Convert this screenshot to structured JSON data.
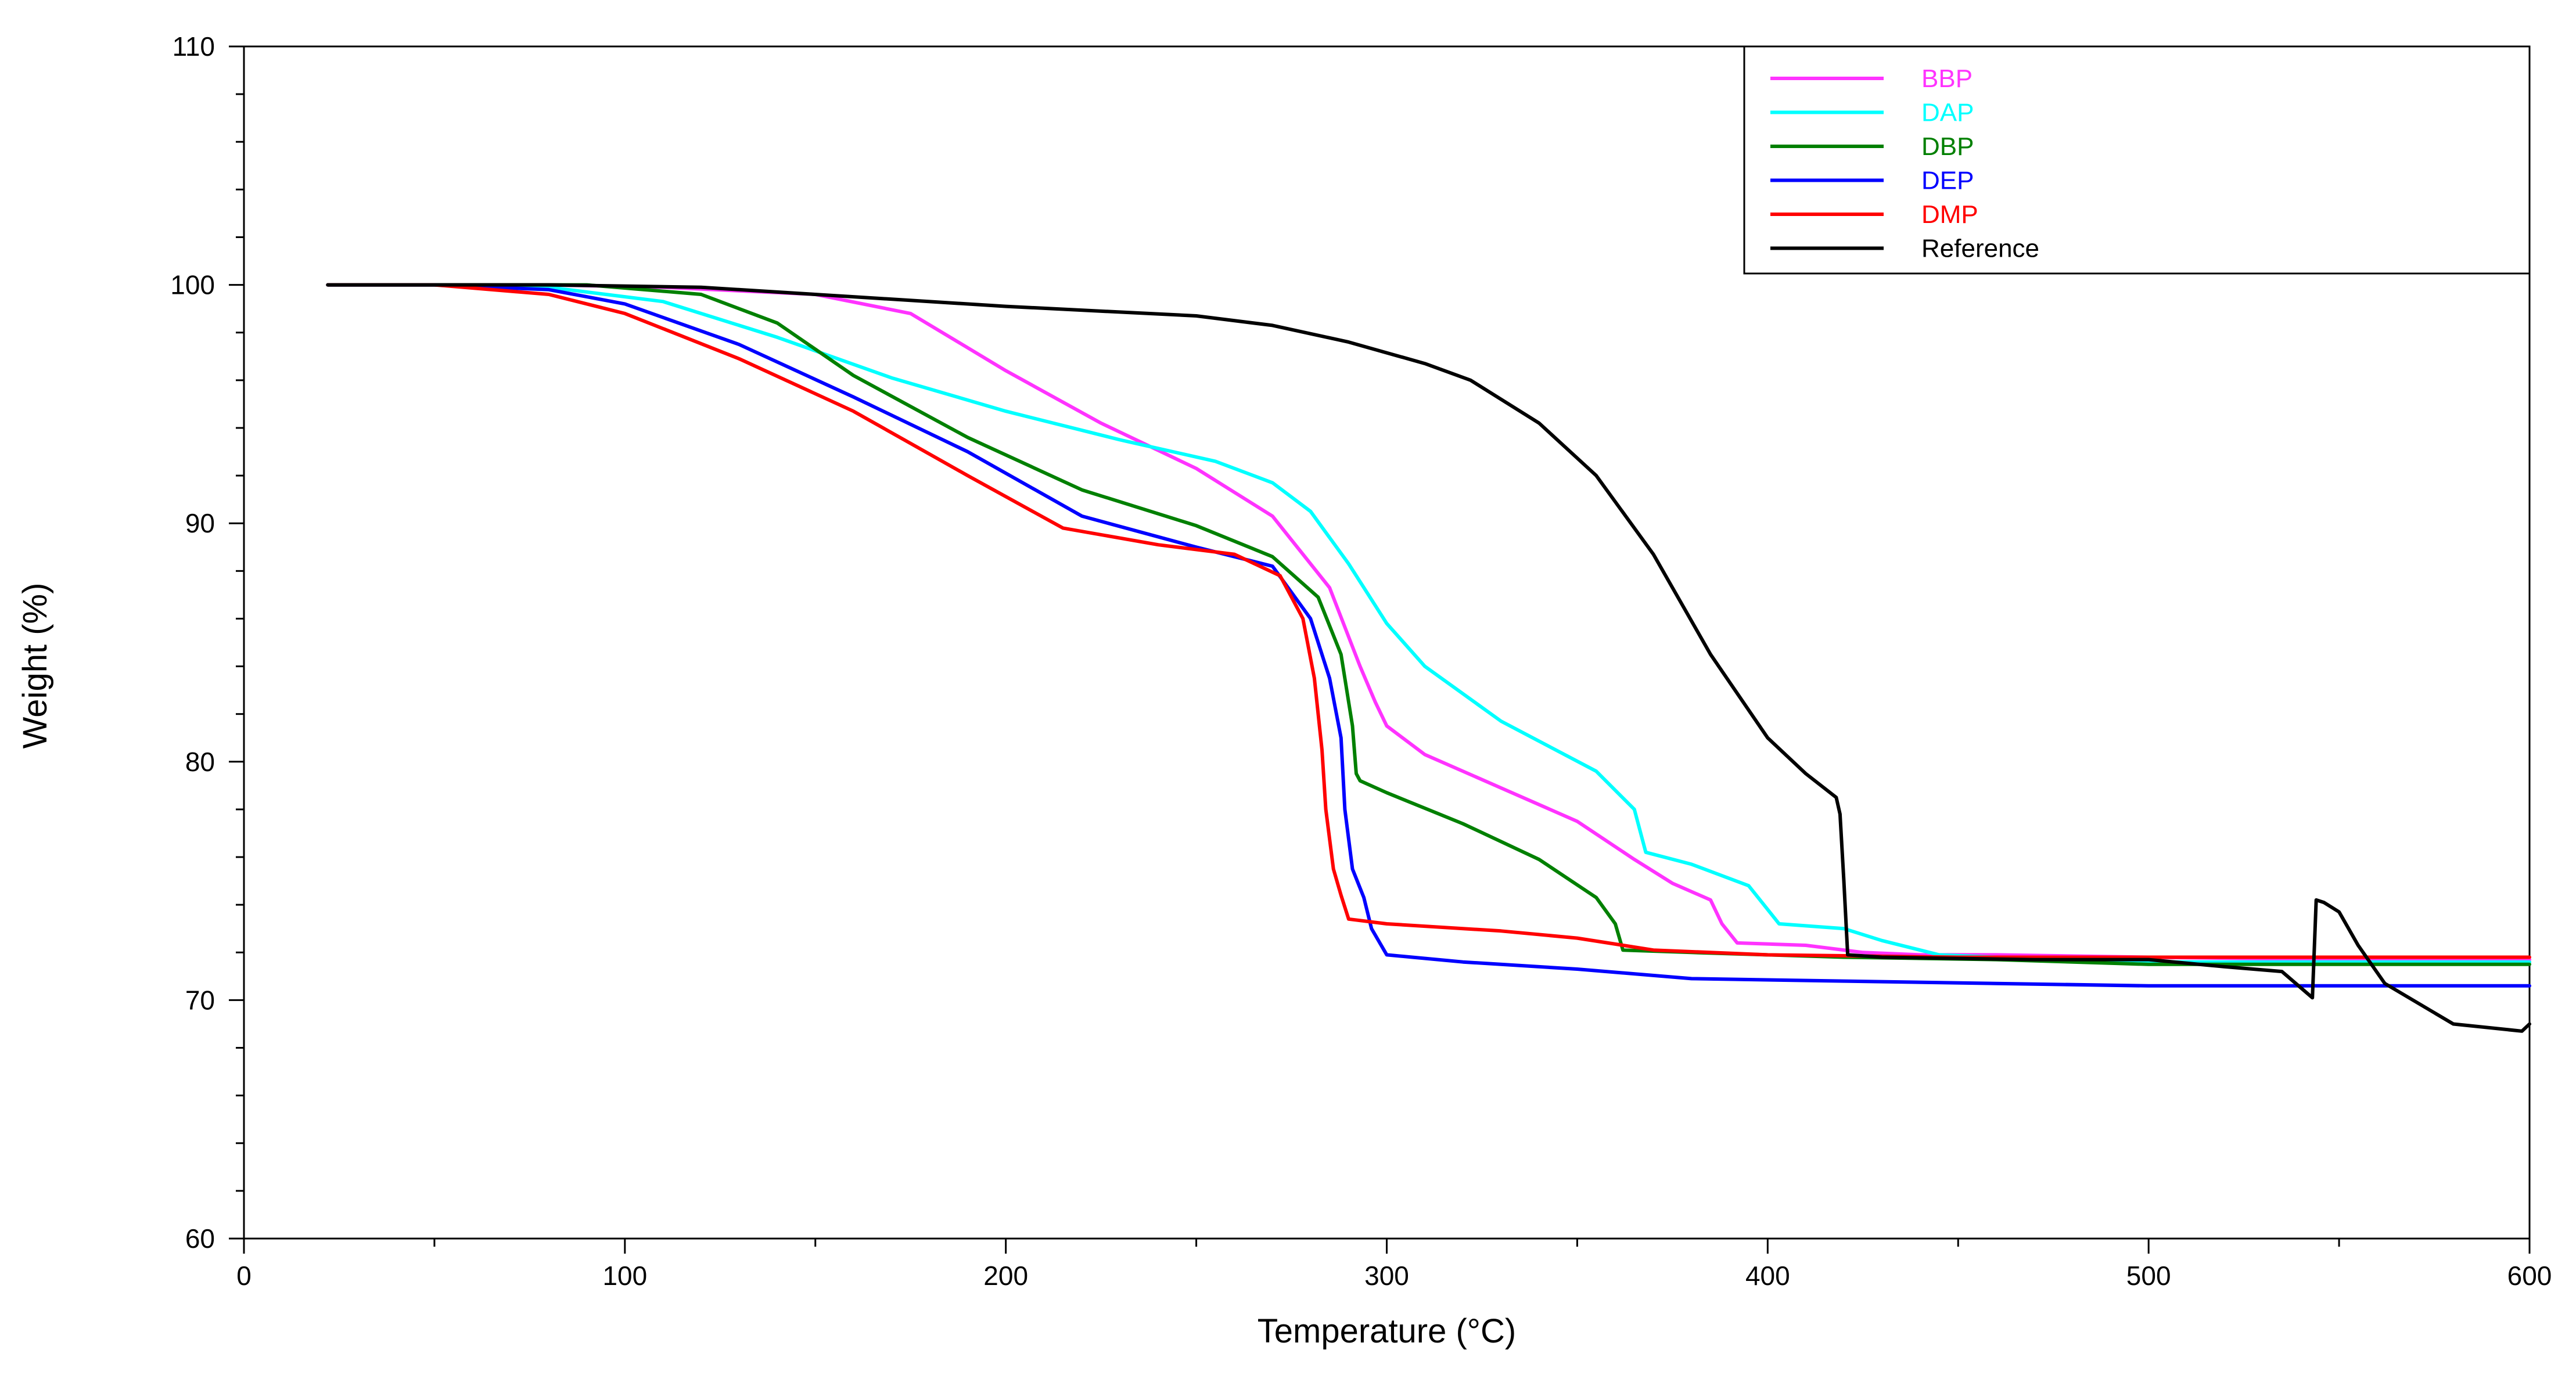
{
  "chart_data": {
    "type": "line",
    "title": "",
    "xlabel": "Temperature (°C)",
    "ylabel": "Weight (%)",
    "xlim": [
      0,
      600
    ],
    "ylim": [
      60,
      110
    ],
    "x_ticks": [
      0,
      100,
      200,
      300,
      400,
      500,
      600
    ],
    "y_ticks": [
      60,
      70,
      80,
      90,
      100,
      110
    ],
    "grid": false,
    "legend_position": "top-right",
    "series": [
      {
        "name": "BBP",
        "color": "#ff33ff",
        "x": [
          22,
          50,
          80,
          110,
          150,
          175,
          200,
          225,
          250,
          270,
          285,
          293,
          297,
          300,
          310,
          330,
          350,
          365,
          375,
          385,
          388,
          392,
          410,
          425,
          440,
          460,
          500,
          550,
          600
        ],
        "y": [
          100,
          100,
          100,
          99.9,
          99.6,
          98.8,
          96.4,
          94.2,
          92.3,
          90.3,
          87.3,
          84.0,
          82.5,
          81.5,
          80.3,
          78.9,
          77.5,
          75.9,
          74.9,
          74.2,
          73.2,
          72.4,
          72.3,
          72.0,
          71.9,
          71.9,
          71.8,
          71.7,
          71.7
        ]
      },
      {
        "name": "DAP",
        "color": "#00ffff",
        "x": [
          22,
          50,
          80,
          110,
          140,
          170,
          200,
          230,
          255,
          270,
          280,
          290,
          300,
          310,
          330,
          355,
          365,
          368,
          380,
          395,
          403,
          420,
          430,
          445,
          460,
          500,
          550,
          600
        ],
        "y": [
          100,
          100,
          99.9,
          99.3,
          97.8,
          96.1,
          94.7,
          93.5,
          92.6,
          91.7,
          90.5,
          88.3,
          85.8,
          84.0,
          81.7,
          79.6,
          78.0,
          76.2,
          75.7,
          74.8,
          73.2,
          73.0,
          72.5,
          71.9,
          71.8,
          71.6,
          71.6,
          71.6
        ]
      },
      {
        "name": "DBP",
        "color": "#008000",
        "x": [
          22,
          50,
          90,
          120,
          140,
          160,
          190,
          220,
          250,
          270,
          282,
          288,
          291,
          292,
          293,
          300,
          320,
          340,
          355,
          360,
          362,
          380,
          420,
          460,
          500,
          550,
          600
        ],
        "y": [
          100,
          100,
          100,
          99.6,
          98.4,
          96.2,
          93.6,
          91.4,
          89.9,
          88.6,
          86.9,
          84.5,
          81.5,
          79.5,
          79.2,
          78.7,
          77.4,
          75.9,
          74.3,
          73.2,
          72.1,
          72.0,
          71.8,
          71.7,
          71.5,
          71.5,
          71.5
        ]
      },
      {
        "name": "DEP",
        "color": "#0000ff",
        "x": [
          22,
          50,
          80,
          100,
          130,
          160,
          190,
          220,
          250,
          270,
          280,
          285,
          288,
          289,
          291,
          294,
          296,
          300,
          320,
          350,
          380,
          420,
          460,
          500,
          550,
          600
        ],
        "y": [
          100,
          100,
          99.8,
          99.2,
          97.5,
          95.3,
          93.0,
          90.3,
          89.0,
          88.2,
          86.0,
          83.5,
          81.0,
          78.0,
          75.5,
          74.3,
          73.0,
          71.9,
          71.6,
          71.3,
          70.9,
          70.8,
          70.7,
          70.6,
          70.6,
          70.6
        ]
      },
      {
        "name": "DMP",
        "color": "#ff0000",
        "x": [
          22,
          50,
          80,
          100,
          130,
          160,
          190,
          215,
          240,
          260,
          272,
          278,
          281,
          283,
          284,
          286,
          288,
          290,
          300,
          330,
          350,
          370,
          400,
          450,
          500,
          550,
          600
        ],
        "y": [
          100,
          100,
          99.6,
          98.8,
          96.9,
          94.7,
          92.0,
          89.8,
          89.1,
          88.7,
          87.8,
          86.0,
          83.5,
          80.5,
          78.0,
          75.5,
          74.4,
          73.4,
          73.2,
          72.9,
          72.6,
          72.1,
          71.9,
          71.8,
          71.8,
          71.8,
          71.8
        ]
      },
      {
        "name": "Reference",
        "color": "#000000",
        "x": [
          22,
          80,
          120,
          160,
          200,
          250,
          270,
          290,
          310,
          322,
          340,
          355,
          370,
          385,
          400,
          410,
          418,
          419,
          420,
          421,
          430,
          470,
          500,
          520,
          535,
          543,
          544,
          546,
          550,
          555,
          562,
          580,
          598,
          600
        ],
        "y": [
          100,
          100,
          99.9,
          99.5,
          99.1,
          98.7,
          98.3,
          97.6,
          96.7,
          96.0,
          94.2,
          92.0,
          88.7,
          84.5,
          81.0,
          79.5,
          78.5,
          77.8,
          75.0,
          71.9,
          71.8,
          71.7,
          71.7,
          71.4,
          71.2,
          70.1,
          74.2,
          74.1,
          73.7,
          72.3,
          70.7,
          69.0,
          68.7,
          69.0
        ]
      }
    ]
  }
}
